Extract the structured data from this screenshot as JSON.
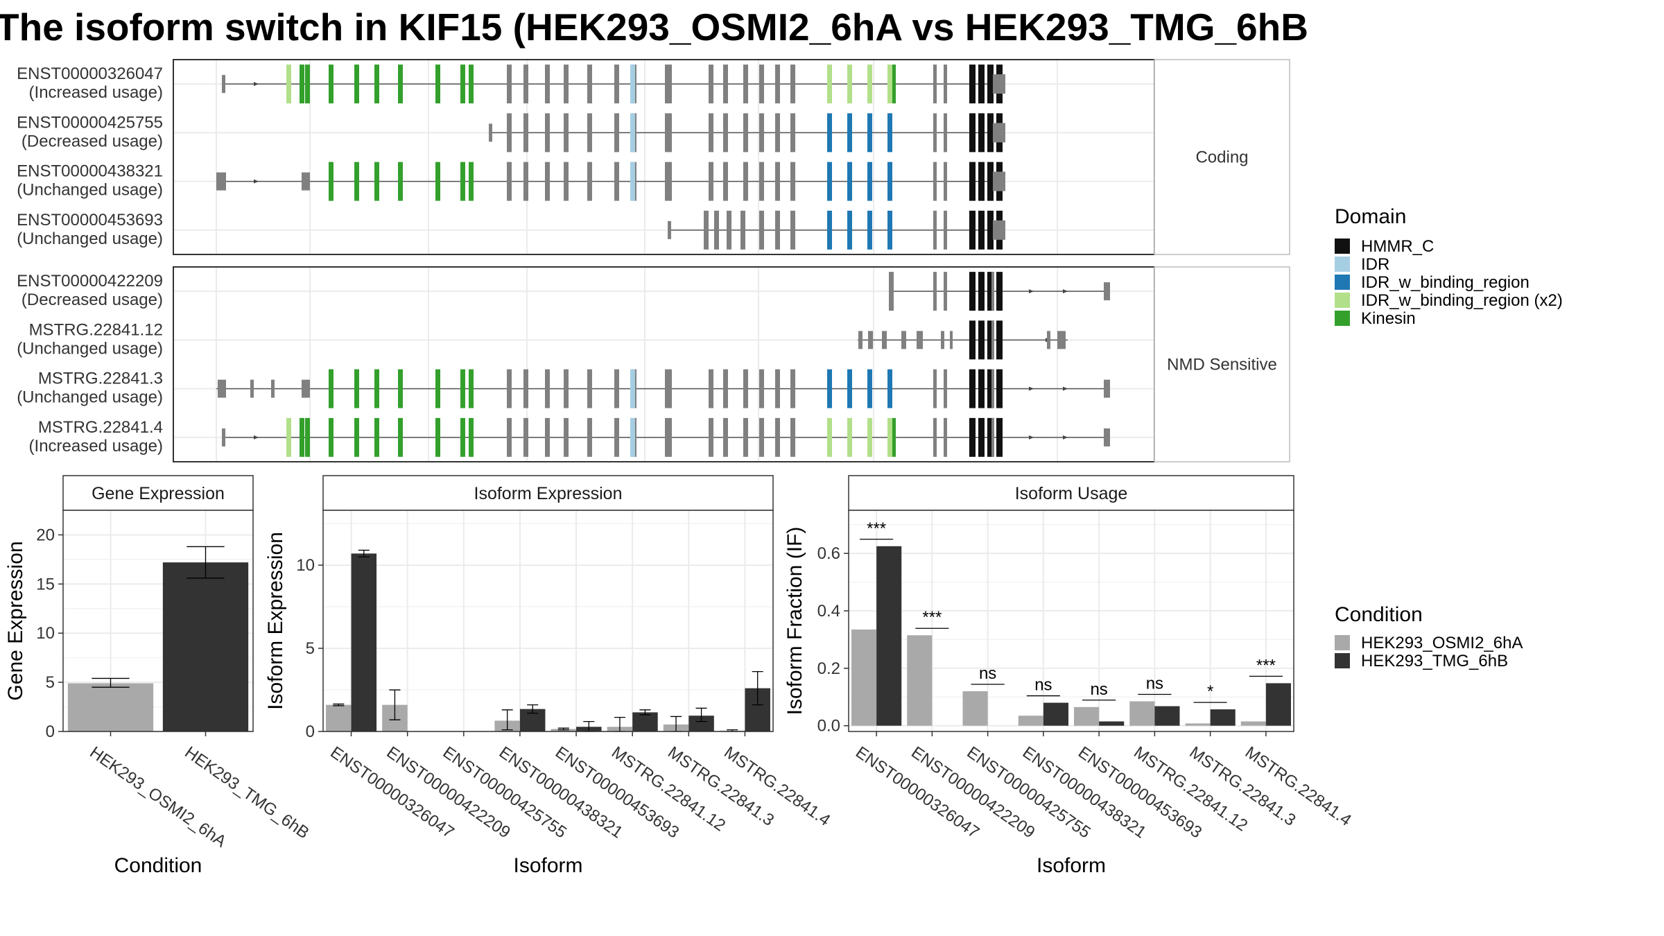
{
  "title": "The isoform switch in KIF15 (HEK293_OSMI2_6hA vs HEK293_TMG_6hB",
  "transcript_panel": {
    "groups": [
      {
        "label": "Coding",
        "transcripts": [
          {
            "id": "ENST00000326047",
            "usage": "(Increased usage)"
          },
          {
            "id": "ENST00000425755",
            "usage": "(Decreased usage)"
          },
          {
            "id": "ENST00000438321",
            "usage": "(Unchanged usage)"
          },
          {
            "id": "ENST00000453693",
            "usage": "(Unchanged usage)"
          }
        ]
      },
      {
        "label": "NMD Sensitive",
        "transcripts": [
          {
            "id": "ENST00000422209",
            "usage": "(Decreased usage)"
          },
          {
            "id": "MSTRG.22841.12",
            "usage": "(Unchanged usage)"
          },
          {
            "id": "MSTRG.22841.3",
            "usage": "(Unchanged usage)"
          },
          {
            "id": "MSTRG.22841.4",
            "usage": "(Increased usage)"
          }
        ]
      }
    ]
  },
  "domain_legend": {
    "title": "Domain",
    "items": [
      {
        "label": "HMMR_C",
        "color": "#111111"
      },
      {
        "label": "IDR",
        "color": "#a6cee3"
      },
      {
        "label": "IDR_w_binding_region",
        "color": "#1f78b4"
      },
      {
        "label": "IDR_w_binding_region (x2)",
        "color": "#b2df8a"
      },
      {
        "label": "Kinesin",
        "color": "#33a02c"
      }
    ]
  },
  "condition_legend": {
    "title": "Condition",
    "items": [
      {
        "label": "HEK293_OSMI2_6hA",
        "color": "#a9a9a9"
      },
      {
        "label": "HEK293_TMG_6hB",
        "color": "#333333"
      }
    ]
  },
  "chart_data": [
    {
      "type": "bar",
      "title": "Gene Expression",
      "xlabel": "Condition",
      "ylabel": "Gene Expression",
      "categories": [
        "HEK293_OSMI2_6hA",
        "HEK293_TMG_6hB"
      ],
      "values": [
        4.9,
        17.2
      ],
      "errors": [
        [
          4.5,
          5.4
        ],
        [
          15.6,
          18.8
        ]
      ],
      "ylim": [
        0,
        22.5
      ],
      "yticks": [
        0,
        5,
        10,
        15,
        20
      ]
    },
    {
      "type": "bar",
      "title": "Isoform Expression",
      "xlabel": "Isoform",
      "ylabel": "Isoform Expression",
      "categories": [
        "ENST00000326047",
        "ENST00000422209",
        "ENST00000425755",
        "ENST00000438321",
        "ENST00000453693",
        "MSTRG.22841.12",
        "MSTRG.22841.3",
        "MSTRG.22841.4"
      ],
      "series": [
        {
          "name": "HEK293_OSMI2_6hA",
          "values": [
            1.6,
            1.6,
            0.0,
            0.65,
            0.15,
            0.28,
            0.42,
            0.05
          ],
          "errors": [
            [
              1.55,
              1.65
            ],
            [
              0.7,
              2.5
            ],
            [
              0,
              0
            ],
            [
              0.1,
              1.3
            ],
            [
              0.1,
              0.2
            ],
            [
              0,
              0.85
            ],
            [
              0,
              0.9
            ],
            [
              0,
              0.1
            ]
          ]
        },
        {
          "name": "HEK293_TMG_6hB",
          "values": [
            10.7,
            0.0,
            0.0,
            1.35,
            0.28,
            1.15,
            0.95,
            2.6
          ],
          "errors": [
            [
              10.5,
              10.9
            ],
            [
              0,
              0
            ],
            [
              0,
              0
            ],
            [
              1.1,
              1.6
            ],
            [
              0,
              0.6
            ],
            [
              1.0,
              1.3
            ],
            [
              0.6,
              1.4
            ],
            [
              1.6,
              3.6
            ]
          ]
        }
      ],
      "ylim": [
        0,
        13.3
      ],
      "yticks": [
        0,
        5,
        10
      ]
    },
    {
      "type": "bar",
      "title": "Isoform Usage",
      "xlabel": "Isoform",
      "ylabel": "Isoform Fraction (IF)",
      "categories": [
        "ENST00000326047",
        "ENST00000422209",
        "ENST00000425755",
        "ENST00000438321",
        "ENST00000453693",
        "MSTRG.22841.12",
        "MSTRG.22841.3",
        "MSTRG.22841.4"
      ],
      "series": [
        {
          "name": "HEK293_OSMI2_6hA",
          "values": [
            0.335,
            0.315,
            0.12,
            0.035,
            0.065,
            0.085,
            0.008,
            0.015
          ]
        },
        {
          "name": "HEK293_TMG_6hB",
          "values": [
            0.625,
            0.0,
            0.0,
            0.08,
            0.015,
            0.068,
            0.057,
            0.148
          ]
        }
      ],
      "significance": [
        "***",
        "***",
        "ns",
        "ns",
        "ns",
        "ns",
        "*",
        "***"
      ],
      "ylim": [
        -0.02,
        0.75
      ],
      "yticks": [
        0.0,
        0.2,
        0.4,
        0.6
      ],
      "ytick_labels": [
        "0.0",
        "0.2",
        "0.4",
        "0.6"
      ]
    }
  ]
}
